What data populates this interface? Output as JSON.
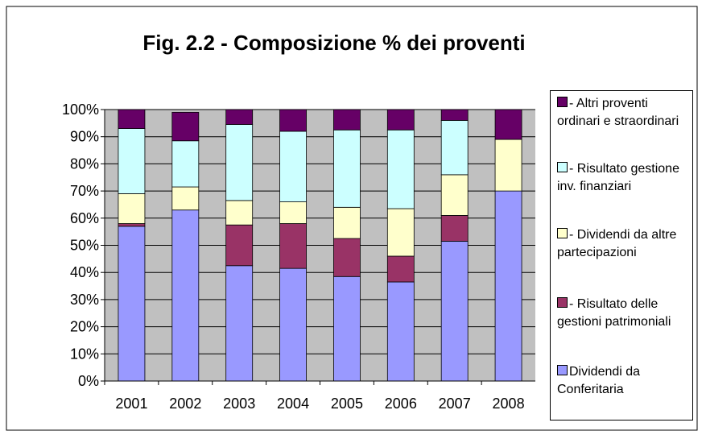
{
  "chart_data": {
    "type": "stacked_bar",
    "title": "Fig. 2.2 - Composizione % dei proventi",
    "categories": [
      "2001",
      "2002",
      "2003",
      "2004",
      "2005",
      "2006",
      "2007",
      "2008"
    ],
    "series": [
      {
        "name": "Dividendi da Conferitaria",
        "color": "#9999ff",
        "values": [
          57,
          63,
          42.5,
          41.5,
          38.5,
          36.5,
          51.5,
          70
        ]
      },
      {
        "name": "- Risultato delle gestioni patrimoniali",
        "color": "#993366",
        "values": [
          1,
          0,
          15,
          16.5,
          14,
          9.5,
          9.5,
          0
        ]
      },
      {
        "name": "- Dividendi da altre partecipazioni",
        "color": "#ffffcc",
        "values": [
          11,
          8.5,
          9,
          8,
          11.5,
          17.5,
          15,
          19
        ]
      },
      {
        "name": "- Risultato gestione inv. finanziari",
        "color": "#ccffff",
        "values": [
          24,
          17,
          28,
          26,
          28.5,
          29,
          20,
          0
        ]
      },
      {
        "name": "- Altri proventi ordinari e straordinari",
        "color": "#660066",
        "values": [
          7,
          10.5,
          5.5,
          8,
          7.5,
          7.5,
          4,
          11
        ]
      }
    ],
    "ylim": [
      0,
      100
    ],
    "yticks": [
      {
        "value": 0,
        "label": "0%"
      },
      {
        "value": 10,
        "label": "10%"
      },
      {
        "value": 20,
        "label": "20%"
      },
      {
        "value": 30,
        "label": "30%"
      },
      {
        "value": 40,
        "label": "40%"
      },
      {
        "value": 50,
        "label": "50%"
      },
      {
        "value": 60,
        "label": "60%"
      },
      {
        "value": 70,
        "label": "70%"
      },
      {
        "value": 80,
        "label": "80%"
      },
      {
        "value": 90,
        "label": "90%"
      },
      {
        "value": 100,
        "label": "100%"
      }
    ],
    "grid": true
  }
}
